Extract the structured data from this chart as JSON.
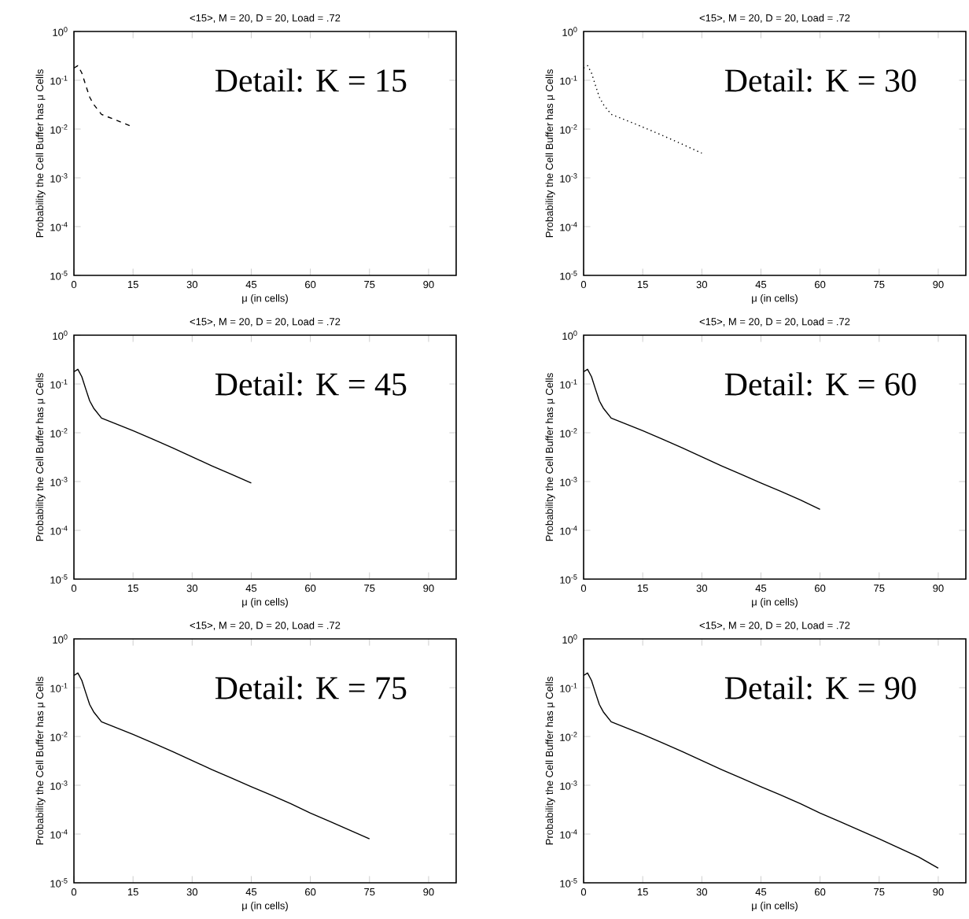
{
  "chart_data": [
    {
      "type": "line",
      "title": "<15>, M = 20, D = 20, Load = .72",
      "xlabel": "μ (in cells)",
      "ylabel": "Probability the Cell Buffer has μ Cells",
      "annotations": [
        "Detail: K = 15"
      ],
      "log": "y",
      "xlim": [
        0,
        97
      ],
      "xticks": [
        0,
        15,
        30,
        45,
        60,
        75,
        90
      ],
      "ylim": [
        1e-05,
        1
      ],
      "yticks": [
        {
          "value": 1,
          "label": "10$^{0}$"
        },
        {
          "value": 0.1,
          "label": "10$^{-1}$"
        },
        {
          "value": 0.01,
          "label": "10$^{-2}$"
        },
        {
          "value": 0.001,
          "label": "10$^{-3}$"
        },
        {
          "value": 0.0001,
          "label": "10$^{-4}$"
        },
        {
          "value": 1e-05,
          "label": "10$^{-5}$"
        }
      ],
      "color": "#000000",
      "line_style": "dashed",
      "x": [
        0,
        1,
        2,
        3,
        4,
        5,
        7,
        10,
        15
      ],
      "values": [
        0.178,
        0.2,
        0.141,
        0.079,
        0.045,
        0.032,
        0.02,
        0.016,
        0.011
      ]
    },
    {
      "type": "line",
      "title": "<15>, M = 20, D = 20, Load = .72",
      "xlabel": "μ (in cells)",
      "ylabel": "Probability the Cell Buffer has μ Cells",
      "annotations": [
        "Detail: K = 30"
      ],
      "log": "y",
      "xlim": [
        0,
        97
      ],
      "xticks": [
        0,
        15,
        30,
        45,
        60,
        75,
        90
      ],
      "ylim": [
        1e-05,
        1
      ],
      "yticks": [
        {
          "value": 1,
          "label": "10$^{0}$"
        },
        {
          "value": 0.1,
          "label": "10$^{-1}$"
        },
        {
          "value": 0.01,
          "label": "10$^{-2}$"
        },
        {
          "value": 0.001,
          "label": "10$^{-3}$"
        },
        {
          "value": 0.0001,
          "label": "10$^{-4}$"
        },
        {
          "value": 1e-05,
          "label": "10$^{-5}$"
        }
      ],
      "color": "#000000",
      "line_style": "dotted",
      "x": [
        0,
        1,
        2,
        3,
        4,
        5,
        7,
        10,
        15,
        20,
        25,
        30
      ],
      "values": [
        0.178,
        0.2,
        0.141,
        0.079,
        0.045,
        0.032,
        0.02,
        0.016,
        0.011,
        0.0074,
        0.0049,
        0.0032
      ]
    },
    {
      "type": "line",
      "title": "<15>, M = 20, D = 20, Load = .72",
      "xlabel": "μ (in cells)",
      "ylabel": "Probability the Cell Buffer has μ Cells",
      "annotations": [
        "Detail: K = 45"
      ],
      "log": "y",
      "xlim": [
        0,
        97
      ],
      "xticks": [
        0,
        15,
        30,
        45,
        60,
        75,
        90
      ],
      "ylim": [
        1e-05,
        1
      ],
      "yticks": [
        {
          "value": 1,
          "label": "10$^{0}$"
        },
        {
          "value": 0.1,
          "label": "10$^{-1}$"
        },
        {
          "value": 0.01,
          "label": "10$^{-2}$"
        },
        {
          "value": 0.001,
          "label": "10$^{-3}$"
        },
        {
          "value": 0.0001,
          "label": "10$^{-4}$"
        },
        {
          "value": 1e-05,
          "label": "10$^{-5}$"
        }
      ],
      "color": "#000000",
      "line_style": "solid",
      "x": [
        0,
        1,
        2,
        3,
        4,
        5,
        7,
        10,
        15,
        20,
        25,
        30,
        35,
        40,
        45
      ],
      "values": [
        0.178,
        0.2,
        0.141,
        0.079,
        0.045,
        0.032,
        0.02,
        0.016,
        0.011,
        0.0074,
        0.0049,
        0.0032,
        0.0021,
        0.0014,
        0.00093
      ]
    },
    {
      "type": "line",
      "title": "<15>, M = 20, D = 20, Load = .72",
      "xlabel": "μ (in cells)",
      "ylabel": "Probability the Cell Buffer has μ Cells",
      "annotations": [
        "Detail: K = 60"
      ],
      "log": "y",
      "xlim": [
        0,
        97
      ],
      "xticks": [
        0,
        15,
        30,
        45,
        60,
        75,
        90
      ],
      "ylim": [
        1e-05,
        1
      ],
      "yticks": [
        {
          "value": 1,
          "label": "10$^{0}$"
        },
        {
          "value": 0.1,
          "label": "10$^{-1}$"
        },
        {
          "value": 0.01,
          "label": "10$^{-2}$"
        },
        {
          "value": 0.001,
          "label": "10$^{-3}$"
        },
        {
          "value": 0.0001,
          "label": "10$^{-4}$"
        },
        {
          "value": 1e-05,
          "label": "10$^{-5}$"
        }
      ],
      "color": "#000000",
      "line_style": "solid",
      "x": [
        0,
        1,
        2,
        3,
        4,
        5,
        7,
        10,
        15,
        20,
        25,
        30,
        35,
        40,
        45,
        50,
        55,
        60
      ],
      "values": [
        0.178,
        0.2,
        0.141,
        0.079,
        0.045,
        0.032,
        0.02,
        0.016,
        0.011,
        0.0074,
        0.0049,
        0.0032,
        0.0021,
        0.0014,
        0.00093,
        0.00063,
        0.00042,
        0.00027
      ]
    },
    {
      "type": "line",
      "title": "<15>, M = 20, D = 20, Load = .72",
      "xlabel": "μ (in cells)",
      "ylabel": "Probability the Cell Buffer has μ Cells",
      "annotations": [
        "Detail: K = 75"
      ],
      "log": "y",
      "xlim": [
        0,
        97
      ],
      "xticks": [
        0,
        15,
        30,
        45,
        60,
        75,
        90
      ],
      "ylim": [
        1e-05,
        1
      ],
      "yticks": [
        {
          "value": 1,
          "label": "10$^{0}$"
        },
        {
          "value": 0.1,
          "label": "10$^{-1}$"
        },
        {
          "value": 0.01,
          "label": "10$^{-2}$"
        },
        {
          "value": 0.001,
          "label": "10$^{-3}$"
        },
        {
          "value": 0.0001,
          "label": "10$^{-4}$"
        },
        {
          "value": 1e-05,
          "label": "10$^{-5}$"
        }
      ],
      "color": "#000000",
      "line_style": "solid",
      "x": [
        0,
        1,
        2,
        3,
        4,
        5,
        7,
        10,
        15,
        20,
        25,
        30,
        35,
        40,
        45,
        50,
        55,
        60,
        65,
        70,
        75
      ],
      "values": [
        0.178,
        0.2,
        0.141,
        0.079,
        0.045,
        0.032,
        0.02,
        0.016,
        0.011,
        0.0074,
        0.0049,
        0.0032,
        0.0021,
        0.0014,
        0.00093,
        0.00063,
        0.00042,
        0.00027,
        0.00018,
        0.00012,
        8e-05
      ]
    },
    {
      "type": "line",
      "title": "<15>, M = 20, D = 20, Load = .72",
      "xlabel": "μ (in cells)",
      "ylabel": "Probability the Cell Buffer has μ Cells",
      "annotations": [
        "Detail: K = 90"
      ],
      "log": "y",
      "xlim": [
        0,
        97
      ],
      "xticks": [
        0,
        15,
        30,
        45,
        60,
        75,
        90
      ],
      "ylim": [
        1e-05,
        1
      ],
      "yticks": [
        {
          "value": 1,
          "label": "10$^{0}$"
        },
        {
          "value": 0.1,
          "label": "10$^{-1}$"
        },
        {
          "value": 0.01,
          "label": "10$^{-2}$"
        },
        {
          "value": 0.001,
          "label": "10$^{-3}$"
        },
        {
          "value": 0.0001,
          "label": "10$^{-4}$"
        },
        {
          "value": 1e-05,
          "label": "10$^{-5}$"
        }
      ],
      "color": "#000000",
      "line_style": "solid",
      "x": [
        0,
        1,
        2,
        3,
        4,
        5,
        7,
        10,
        15,
        20,
        25,
        30,
        35,
        40,
        45,
        50,
        55,
        60,
        65,
        70,
        75,
        80,
        85,
        90
      ],
      "values": [
        0.178,
        0.2,
        0.141,
        0.079,
        0.045,
        0.032,
        0.02,
        0.016,
        0.011,
        0.0074,
        0.0049,
        0.0032,
        0.0021,
        0.0014,
        0.00093,
        0.00063,
        0.00042,
        0.00027,
        0.00018,
        0.00012,
        8e-05,
        5.2e-05,
        3.4e-05,
        2e-05
      ]
    }
  ]
}
